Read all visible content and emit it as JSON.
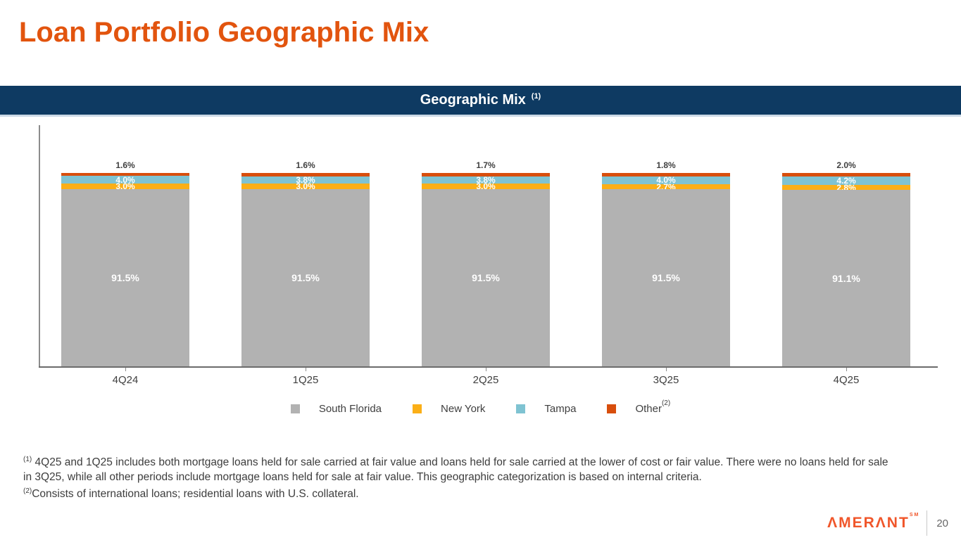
{
  "page": {
    "title": "Loan Portfolio Geographic Mix",
    "banner_title": "Geographic Mix",
    "banner_superscript": "(1)",
    "page_number": "20",
    "logo_text": "ΛMERΛNT",
    "logo_sm": "SM"
  },
  "chart_data": {
    "type": "bar",
    "stacked": true,
    "categories": [
      "4Q24",
      "1Q25",
      "2Q25",
      "3Q25",
      "4Q25"
    ],
    "series": [
      {
        "name": "South Florida",
        "color": "#B2B2B2",
        "values": [
          91.5,
          91.5,
          91.5,
          91.5,
          91.1
        ],
        "label_style": "inside-white"
      },
      {
        "name": "New York",
        "color": "#FBAF17",
        "values": [
          3.0,
          3.0,
          3.0,
          2.7,
          2.8
        ],
        "label_style": "inside-white"
      },
      {
        "name": "Tampa",
        "color": "#7FC3D2",
        "values": [
          4.0,
          3.8,
          3.8,
          4.0,
          4.2
        ],
        "label_style": "inside-white"
      },
      {
        "name": "Other",
        "color": "#D84E0C",
        "superscript": "(2)",
        "values": [
          1.6,
          1.6,
          1.7,
          1.8,
          2.0
        ],
        "label_style": "above-dark"
      }
    ],
    "ylim": [
      0,
      100
    ],
    "grid": false,
    "legend_position": "bottom",
    "value_label_format": "0.0%"
  },
  "footnotes": [
    {
      "marker": "(1)",
      "text": "4Q25 and 1Q25 includes both mortgage loans held for sale carried at fair value and loans held for sale carried at the lower of cost  or fair value. There were no loans held for sale in 3Q25, while all other periods include mortgage loans held for sale at fair value. This geographic categorization is based on internal criteria."
    },
    {
      "marker": "(2)",
      "text": "Consists of international loans; residential loans with U.S. collateral."
    }
  ]
}
